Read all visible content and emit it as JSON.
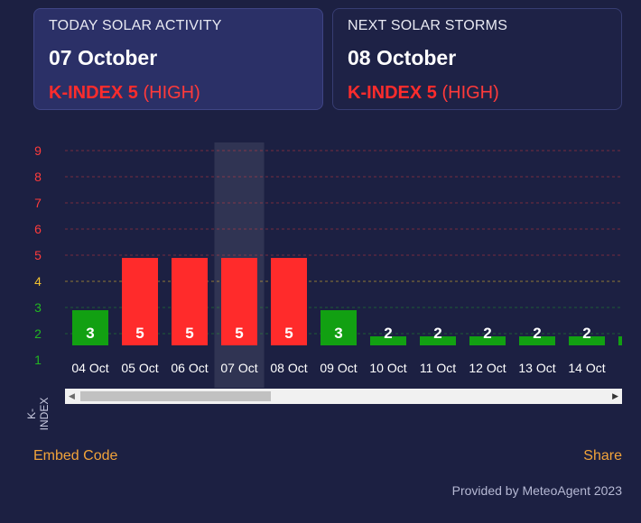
{
  "cards": {
    "today": {
      "title": "TODAY SOLAR ACTIVITY",
      "date": "07 October",
      "kp_label": "K-INDEX 5",
      "level": "(HIGH)"
    },
    "next": {
      "title": "NEXT SOLAR STORMS",
      "date": "08 October",
      "kp_label": "K-INDEX 5",
      "level": "(HIGH)"
    }
  },
  "chart_data": {
    "type": "bar",
    "categories": [
      "04 Oct",
      "05 Oct",
      "06 Oct",
      "07 Oct",
      "08 Oct",
      "09 Oct",
      "10 Oct",
      "11 Oct",
      "12 Oct",
      "13 Oct",
      "14 Oct"
    ],
    "values": [
      3,
      5,
      5,
      5,
      5,
      3,
      2,
      2,
      2,
      2,
      2
    ],
    "ylabel": "K-INDEX",
    "yticks": [
      1,
      2,
      3,
      4,
      5,
      6,
      7,
      8,
      9
    ],
    "ylim": [
      1,
      9
    ],
    "highlighted_category": "07 Oct",
    "data_labels": true,
    "grid": true,
    "colors": {
      "low": "#12a012",
      "high": "#ff2b2b",
      "tick_high": "#ff3b3b",
      "tick_mid": "#f2c230",
      "tick_low": "#22b522"
    }
  },
  "footer": {
    "embed": "Embed Code",
    "share": "Share",
    "credit": "Provided by MeteoAgent 2023"
  }
}
